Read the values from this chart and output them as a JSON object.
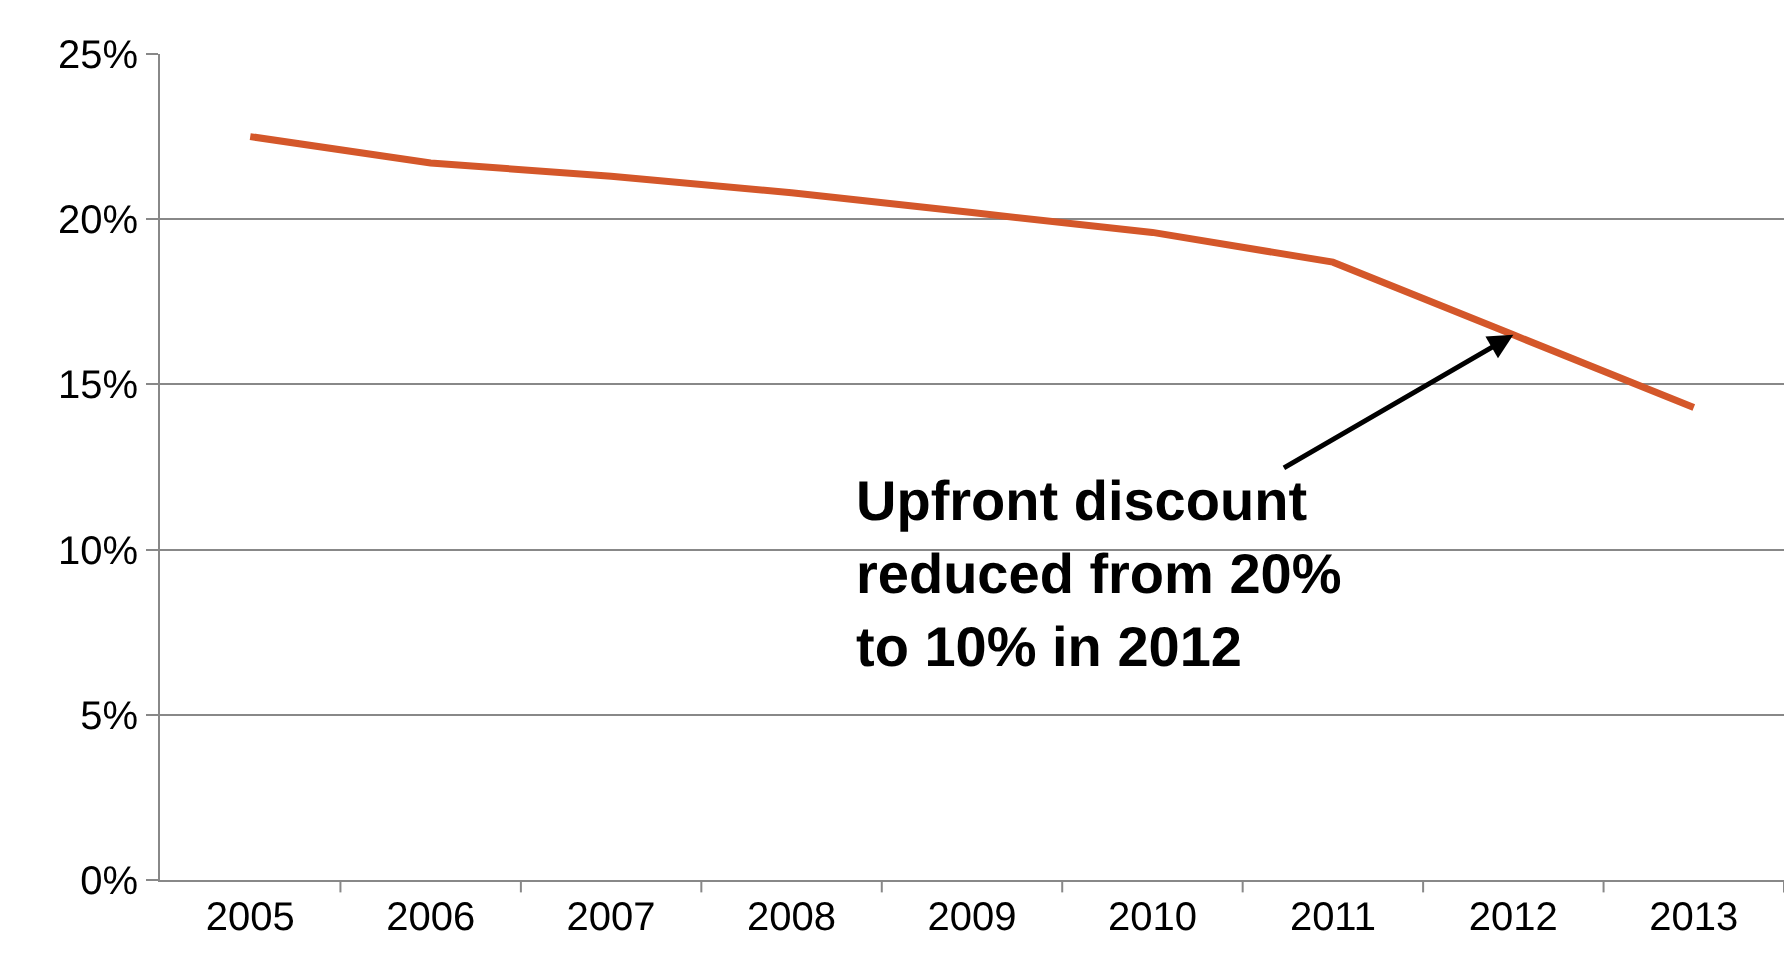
{
  "chart_data": {
    "type": "line",
    "categories": [
      "2005",
      "2006",
      "2007",
      "2008",
      "2009",
      "2010",
      "2011",
      "2012",
      "2013"
    ],
    "series": [
      {
        "color": "#d4572a",
        "values": [
          22.5,
          21.7,
          21.3,
          20.8,
          20.2,
          19.6,
          18.7,
          16.5,
          14.3
        ]
      }
    ],
    "ylim": [
      0,
      25
    ],
    "yticks": [
      {
        "value": 0,
        "label": "0%"
      },
      {
        "value": 5,
        "label": "5%"
      },
      {
        "value": 10,
        "label": "10%"
      },
      {
        "value": 15,
        "label": "15%"
      },
      {
        "value": 20,
        "label": "20%"
      },
      {
        "value": 25,
        "label": "25%"
      }
    ],
    "grid": "y",
    "marker": "none",
    "line_style": "solid",
    "annotations": [
      {
        "text": "Upfront discount\nreduced from 20%\nto 10% in 2012",
        "x": "2012",
        "y": 16.5
      }
    ]
  }
}
